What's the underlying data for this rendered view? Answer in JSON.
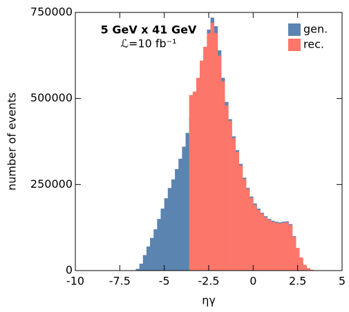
{
  "chart_data": {
    "type": "histogram",
    "annotations": [
      "5 GeV x 41 GeV",
      "ℒ=10 fb⁻¹"
    ],
    "xlabel": "ηγ",
    "ylabel": "number of events",
    "bins": [
      -6.6,
      -6.4,
      -6.2,
      -6.0,
      -5.8,
      -5.6,
      -5.4,
      -5.2,
      -5.0,
      -4.8,
      -4.6,
      -4.4,
      -4.2,
      -4.0,
      -3.8,
      -3.6,
      -3.4,
      -3.2,
      -3.0,
      -2.8,
      -2.6,
      -2.4,
      -2.2,
      -2.0,
      -1.8,
      -1.6,
      -1.4,
      -1.2,
      -1.0,
      -0.8,
      -0.6,
      -0.4,
      -0.2,
      0.0,
      0.2,
      0.4,
      0.6,
      0.8,
      1.0,
      1.2,
      1.4,
      1.6,
      1.8,
      2.0,
      2.2,
      2.4,
      2.6,
      2.8,
      3.0,
      3.2,
      3.4,
      3.6,
      3.8
    ],
    "series": [
      {
        "name": "gen.",
        "color": "#5b84b1",
        "values": [
          5000,
          20000,
          45000,
          70000,
          95000,
          120000,
          150000,
          180000,
          210000,
          240000,
          265000,
          295000,
          325000,
          360000,
          400000,
          445000,
          490000,
          540000,
          600000,
          650000,
          700000,
          735000,
          710000,
          640000,
          560000,
          490000,
          440000,
          390000,
          350000,
          310000,
          270000,
          240000,
          215000,
          195000,
          180000,
          168000,
          158000,
          150000,
          145000,
          142000,
          140000,
          142000,
          143000,
          135000,
          100000,
          65000,
          35000,
          15000,
          6000,
          2000,
          800,
          200
        ]
      },
      {
        "name": "rec.",
        "color": "#fc766a",
        "values": [
          0,
          0,
          0,
          0,
          0,
          0,
          0,
          0,
          0,
          0,
          0,
          0,
          0,
          0,
          0,
          510000,
          520000,
          560000,
          610000,
          650000,
          690000,
          720000,
          690000,
          625000,
          550000,
          480000,
          435000,
          385000,
          345000,
          305000,
          266000,
          236000,
          211000,
          191000,
          176000,
          165000,
          155000,
          147000,
          142000,
          139000,
          137000,
          139000,
          140000,
          132000,
          98000,
          66000,
          38000,
          17000,
          7000,
          2500,
          1000,
          300
        ]
      }
    ],
    "xlim": [
      -10,
      5
    ],
    "ylim": [
      0,
      750000
    ],
    "xticks": [
      -10,
      -7.5,
      -5,
      -2.5,
      0,
      2.5,
      5
    ],
    "yticks": [
      0,
      250000,
      500000,
      750000
    ],
    "legend": "upper right"
  }
}
